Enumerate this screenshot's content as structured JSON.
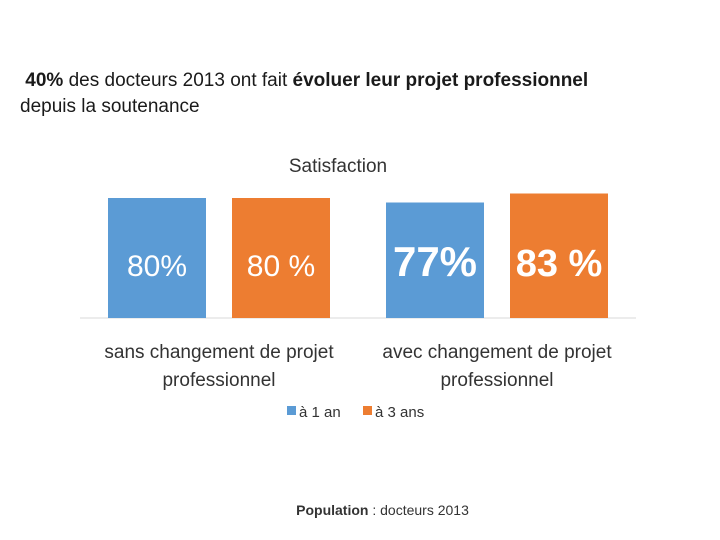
{
  "heading": {
    "lead_bold": "40%",
    "lead_text": " des docteurs 2013 ont fait ",
    "emph_bold": "évoluer leur projet professionnel",
    "line2": "depuis la soutenance"
  },
  "chart_data": {
    "type": "bar",
    "title": "Satisfaction",
    "categories": [
      [
        "sans changement de projet",
        "professionnel"
      ],
      [
        "avec changement de projet",
        "professionnel"
      ]
    ],
    "series": [
      {
        "name": "à 1 an",
        "color": "#5B9BD5",
        "values": [
          80,
          77
        ],
        "labels": [
          "80%",
          "77%"
        ]
      },
      {
        "name": "à 3 ans",
        "color": "#ED7D31",
        "values": [
          80,
          83
        ],
        "labels": [
          "80 %",
          "83 %"
        ]
      }
    ],
    "ylim": [
      0,
      100
    ],
    "legend": "bottom"
  },
  "footer": {
    "label_bold": "Population",
    "label_text": " : docteurs 2013"
  }
}
